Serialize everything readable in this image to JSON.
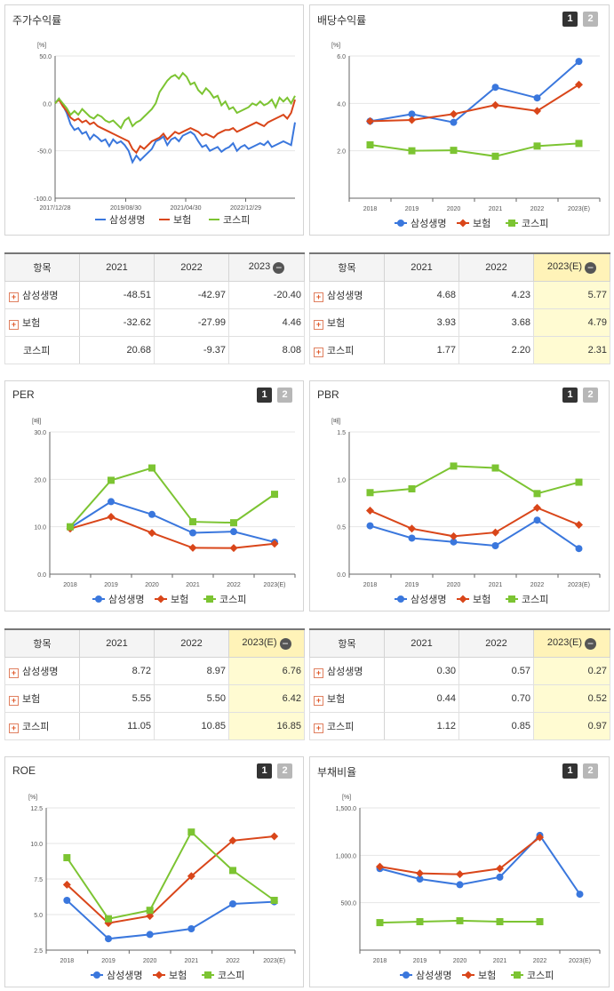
{
  "colors": {
    "s1": "#3a77dd",
    "s2": "#d9461a",
    "s3": "#7cc432",
    "axis": "#666666",
    "grid": "#e6e6e6"
  },
  "legend": [
    "삼성생명",
    "보험",
    "코스피"
  ],
  "pager": [
    "1",
    "2"
  ],
  "panels": {
    "stock": {
      "title": "주가수익률",
      "chart_data": {
        "type": "line",
        "unit": "[%]",
        "x_ticks": [
          "2017/12/28",
          "2019/08/30",
          "2021/04/30",
          "2022/12/29"
        ],
        "y_ticks": [
          "50.0",
          "0.0",
          "-50.0",
          "-100.0"
        ],
        "ylim": [
          -100,
          50
        ],
        "series": [
          {
            "name": "삼성생명",
            "values": [
              0,
              5,
              -2,
              -10,
              -22,
              -28,
              -26,
              -32,
              -30,
              -38,
              -33,
              -36,
              -40,
              -38,
              -45,
              -38,
              -42,
              -40,
              -44,
              -50,
              -62,
              -55,
              -60,
              -56,
              -52,
              -48,
              -40,
              -38,
              -35,
              -44,
              -38,
              -36,
              -40,
              -34,
              -32,
              -30,
              -33,
              -40,
              -46,
              -44,
              -50,
              -48,
              -46,
              -51,
              -48,
              -46,
              -42,
              -50,
              -46,
              -44,
              -48,
              -46,
              -44,
              -42,
              -44,
              -40,
              -46,
              -44,
              -42,
              -40,
              -42,
              -44,
              -20
            ]
          },
          {
            "name": "보험",
            "values": [
              0,
              4,
              -3,
              -8,
              -15,
              -18,
              -16,
              -20,
              -18,
              -22,
              -20,
              -24,
              -26,
              -28,
              -30,
              -32,
              -34,
              -36,
              -38,
              -40,
              -48,
              -52,
              -45,
              -48,
              -44,
              -40,
              -38,
              -36,
              -32,
              -38,
              -34,
              -30,
              -32,
              -30,
              -28,
              -26,
              -28,
              -30,
              -34,
              -32,
              -34,
              -36,
              -32,
              -30,
              -28,
              -28,
              -26,
              -30,
              -28,
              -26,
              -24,
              -22,
              -20,
              -22,
              -24,
              -20,
              -18,
              -16,
              -14,
              -12,
              -16,
              -10,
              4
            ]
          },
          {
            "name": "코스피",
            "values": [
              0,
              5,
              0,
              -5,
              -12,
              -8,
              -12,
              -6,
              -10,
              -14,
              -16,
              -12,
              -14,
              -18,
              -20,
              -18,
              -22,
              -26,
              -18,
              -15,
              -24,
              -20,
              -18,
              -14,
              -10,
              -6,
              0,
              12,
              18,
              24,
              28,
              30,
              26,
              32,
              28,
              20,
              22,
              14,
              10,
              16,
              12,
              6,
              8,
              -2,
              2,
              -6,
              -4,
              -10,
              -8,
              -6,
              -4,
              0,
              -2,
              2,
              -2,
              0,
              4,
              -4,
              6,
              2,
              6,
              0,
              8
            ]
          }
        ]
      },
      "table": {
        "headers": [
          "항목",
          "2021",
          "2022",
          "2023"
        ],
        "rows": [
          {
            "name": "삼성생명",
            "values": [
              "-48.51",
              "-42.97",
              "-20.40"
            ]
          },
          {
            "name": "보험",
            "values": [
              "-32.62",
              "-27.99",
              "4.46"
            ]
          },
          {
            "name": "코스피",
            "values": [
              "20.68",
              "-9.37",
              "8.08"
            ]
          }
        ]
      }
    },
    "dividend": {
      "title": "배당수익률",
      "chart_data": {
        "type": "line",
        "unit": "[%]",
        "categories": [
          "2018",
          "2019",
          "2020",
          "2021",
          "2022",
          "2023(E)"
        ],
        "y_ticks": [
          "6.0",
          "4.0",
          "2.0"
        ],
        "ylim": [
          0,
          6
        ],
        "series": [
          {
            "name": "삼성생명",
            "values": [
              3.25,
              3.55,
              3.2,
              4.68,
              4.23,
              5.77
            ]
          },
          {
            "name": "보험",
            "values": [
              3.25,
              3.3,
              3.55,
              3.93,
              3.68,
              4.79
            ]
          },
          {
            "name": "코스피",
            "values": [
              2.25,
              2.0,
              2.02,
              1.77,
              2.2,
              2.31
            ]
          }
        ]
      },
      "table": {
        "headers": [
          "항목",
          "2021",
          "2022",
          "2023(E)"
        ],
        "rows": [
          {
            "name": "삼성생명",
            "values": [
              "4.68",
              "4.23",
              "5.77"
            ]
          },
          {
            "name": "보험",
            "values": [
              "3.93",
              "3.68",
              "4.79"
            ]
          },
          {
            "name": "코스피",
            "values": [
              "1.77",
              "2.20",
              "2.31"
            ]
          }
        ]
      }
    },
    "per": {
      "title": "PER",
      "chart_data": {
        "type": "line",
        "unit": "[배]",
        "categories": [
          "2018",
          "2019",
          "2020",
          "2021",
          "2022",
          "2023(E)"
        ],
        "y_ticks": [
          "30.0",
          "20.0",
          "10.0",
          "0.0"
        ],
        "ylim": [
          0,
          30
        ],
        "series": [
          {
            "name": "삼성생명",
            "values": [
              9.8,
              15.3,
              12.6,
              8.72,
              8.97,
              6.76
            ]
          },
          {
            "name": "보험",
            "values": [
              9.6,
              12.1,
              8.7,
              5.55,
              5.5,
              6.42
            ]
          },
          {
            "name": "코스피",
            "values": [
              10.0,
              19.8,
              22.4,
              11.05,
              10.85,
              16.85
            ]
          }
        ]
      },
      "table": {
        "headers": [
          "항목",
          "2021",
          "2022",
          "2023(E)"
        ],
        "rows": [
          {
            "name": "삼성생명",
            "values": [
              "8.72",
              "8.97",
              "6.76"
            ]
          },
          {
            "name": "보험",
            "values": [
              "5.55",
              "5.50",
              "6.42"
            ]
          },
          {
            "name": "코스피",
            "values": [
              "11.05",
              "10.85",
              "16.85"
            ]
          }
        ]
      }
    },
    "pbr": {
      "title": "PBR",
      "chart_data": {
        "type": "line",
        "unit": "[배]",
        "categories": [
          "2018",
          "2019",
          "2020",
          "2021",
          "2022",
          "2023(E)"
        ],
        "y_ticks": [
          "1.5",
          "1.0",
          "0.5",
          "0.0"
        ],
        "ylim": [
          0,
          1.5
        ],
        "series": [
          {
            "name": "삼성생명",
            "values": [
              0.51,
              0.38,
              0.34,
              0.3,
              0.57,
              0.27
            ]
          },
          {
            "name": "보험",
            "values": [
              0.67,
              0.48,
              0.4,
              0.44,
              0.7,
              0.52
            ]
          },
          {
            "name": "코스피",
            "values": [
              0.86,
              0.9,
              1.14,
              1.12,
              0.85,
              0.97
            ]
          }
        ]
      },
      "table": {
        "headers": [
          "항목",
          "2021",
          "2022",
          "2023(E)"
        ],
        "rows": [
          {
            "name": "삼성생명",
            "values": [
              "0.30",
              "0.57",
              "0.27"
            ]
          },
          {
            "name": "보험",
            "values": [
              "0.44",
              "0.70",
              "0.52"
            ]
          },
          {
            "name": "코스피",
            "values": [
              "1.12",
              "0.85",
              "0.97"
            ]
          }
        ]
      }
    },
    "roe": {
      "title": "ROE",
      "chart_data": {
        "type": "line",
        "unit": "[%]",
        "categories": [
          "2018",
          "2019",
          "2020",
          "2021",
          "2022",
          "2023(E)"
        ],
        "y_ticks": [
          "12.5",
          "10.0",
          "7.5",
          "5.0",
          "2.5"
        ],
        "ylim": [
          2.5,
          12.5
        ],
        "series": [
          {
            "name": "삼성생명",
            "values": [
              6.0,
              3.3,
              3.6,
              4.0,
              5.75,
              5.9
            ]
          },
          {
            "name": "보험",
            "values": [
              7.1,
              4.4,
              4.9,
              7.7,
              10.2,
              10.5
            ]
          },
          {
            "name": "코스피",
            "values": [
              9.0,
              4.7,
              5.3,
              10.8,
              8.1,
              6.0
            ]
          }
        ]
      }
    },
    "debt": {
      "title": "부채비율",
      "chart_data": {
        "type": "line",
        "unit": "[%]",
        "categories": [
          "2018",
          "2019",
          "2020",
          "2021",
          "2022",
          "2023(E)"
        ],
        "y_ticks": [
          "1,500.0",
          "1,000.0",
          "500.0"
        ],
        "ylim": [
          0,
          1500
        ],
        "series": [
          {
            "name": "삼성생명",
            "values": [
              860,
              750,
              690,
              770,
              1210,
              590
            ]
          },
          {
            "name": "보험",
            "values": [
              880,
              810,
              800,
              860,
              1190,
              null
            ]
          },
          {
            "name": "코스피",
            "values": [
              290,
              300,
              310,
              300,
              300,
              null
            ]
          }
        ]
      }
    }
  }
}
